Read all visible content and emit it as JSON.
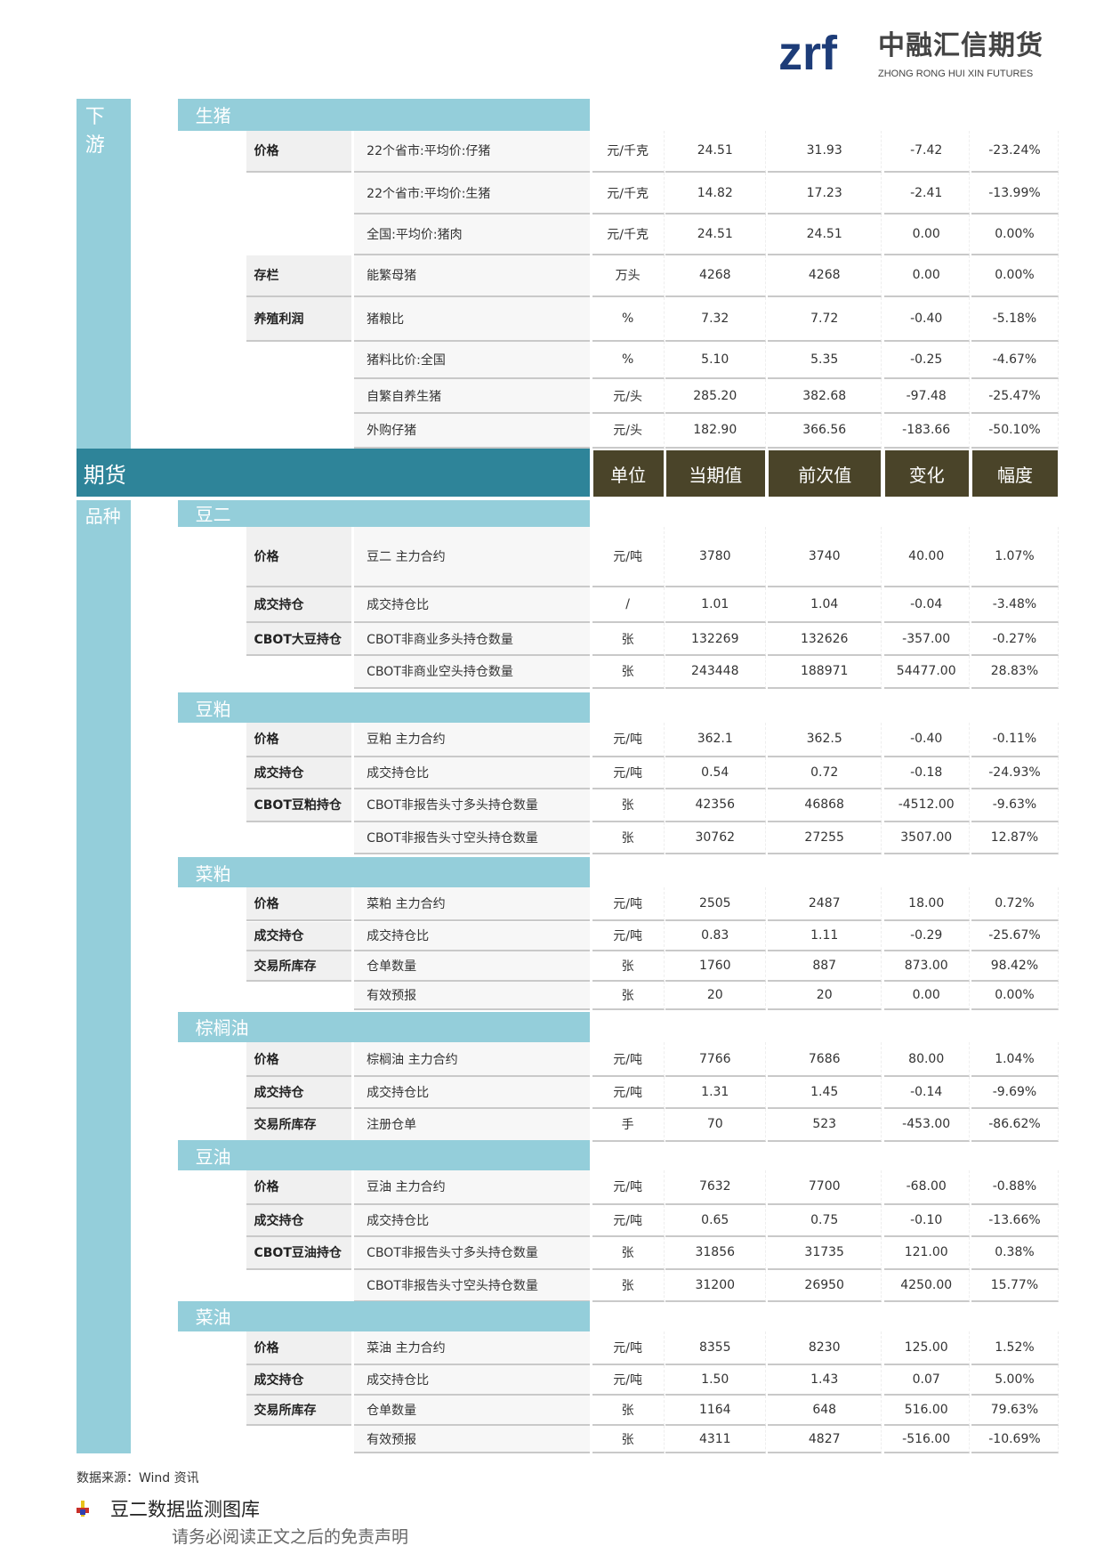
{
  "logo": {
    "cn": "中融汇信期货",
    "en": "ZHONG RONG HUI XIN FUTURES",
    "mark": "zrf"
  },
  "downstream": {
    "label": "下游",
    "section": "生猪",
    "rows": [
      [
        "价格",
        "22个省市:平均价:仔猪",
        "元/千克",
        "24.51",
        "31.93",
        "-7.42",
        "-23.24%"
      ],
      [
        "",
        "22个省市:平均价:生猪",
        "元/千克",
        "14.82",
        "17.23",
        "-2.41",
        "-13.99%"
      ],
      [
        "",
        "全国:平均价:猪肉",
        "元/千克",
        "24.51",
        "24.51",
        "0.00",
        "0.00%"
      ],
      [
        "存栏",
        "能繁母猪",
        "万头",
        "4268",
        "4268",
        "0.00",
        "0.00%"
      ],
      [
        "养殖利润",
        "猪粮比",
        "%",
        "7.32",
        "7.72",
        "-0.40",
        "-5.18%"
      ],
      [
        "",
        "猪料比价:全国",
        "%",
        "5.10",
        "5.35",
        "-0.25",
        "-4.67%"
      ],
      [
        "",
        "自繁自养生猪",
        "元/头",
        "285.20",
        "382.68",
        "-97.48",
        "-25.47%"
      ],
      [
        "",
        "外购仔猪",
        "元/头",
        "182.90",
        "366.56",
        "-183.66",
        "-50.10%"
      ]
    ]
  },
  "futures": {
    "label": "期货",
    "variety_label": "品种",
    "headers": [
      "单位",
      "当期值",
      "前次值",
      "变化",
      "幅度"
    ],
    "sections": [
      {
        "name": "豆二",
        "rows": [
          [
            "价格",
            "豆二 主力合约",
            "元/吨",
            "3780",
            "3740",
            "40.00",
            "1.07%"
          ],
          [
            "成交持仓",
            "成交持仓比",
            "/",
            "1.01",
            "1.04",
            "-0.04",
            "-3.48%"
          ],
          [
            "CBOT大豆持仓",
            "CBOT非商业多头持仓数量",
            "张",
            "132269",
            "132626",
            "-357.00",
            "-0.27%"
          ],
          [
            "",
            "CBOT非商业空头持仓数量",
            "张",
            "243448",
            "188971",
            "54477.00",
            "28.83%"
          ]
        ]
      },
      {
        "name": "豆粕",
        "rows": [
          [
            "价格",
            "豆粕 主力合约",
            "元/吨",
            "362.1",
            "362.5",
            "-0.40",
            "-0.11%"
          ],
          [
            "成交持仓",
            "成交持仓比",
            "元/吨",
            "0.54",
            "0.72",
            "-0.18",
            "-24.93%"
          ],
          [
            "CBOT豆粕持仓",
            "CBOT非报告头寸多头持仓数量",
            "张",
            "42356",
            "46868",
            "-4512.00",
            "-9.63%"
          ],
          [
            "",
            "CBOT非报告头寸空头持仓数量",
            "张",
            "30762",
            "27255",
            "3507.00",
            "12.87%"
          ]
        ]
      },
      {
        "name": "菜粕",
        "rows": [
          [
            "价格",
            "菜粕 主力合约",
            "元/吨",
            "2505",
            "2487",
            "18.00",
            "0.72%"
          ],
          [
            "成交持仓",
            "成交持仓比",
            "元/吨",
            "0.83",
            "1.11",
            "-0.29",
            "-25.67%"
          ],
          [
            "交易所库存",
            "仓单数量",
            "张",
            "1760",
            "887",
            "873.00",
            "98.42%"
          ],
          [
            "",
            "有效预报",
            "张",
            "20",
            "20",
            "0.00",
            "0.00%"
          ]
        ]
      },
      {
        "name": "棕榈油",
        "rows": [
          [
            "价格",
            "棕榈油 主力合约",
            "元/吨",
            "7766",
            "7686",
            "80.00",
            "1.04%"
          ],
          [
            "成交持仓",
            "成交持仓比",
            "元/吨",
            "1.31",
            "1.45",
            "-0.14",
            "-9.69%"
          ],
          [
            "交易所库存",
            "注册仓单",
            "手",
            "70",
            "523",
            "-453.00",
            "-86.62%"
          ]
        ]
      },
      {
        "name": "豆油",
        "rows": [
          [
            "价格",
            "豆油 主力合约",
            "元/吨",
            "7632",
            "7700",
            "-68.00",
            "-0.88%"
          ],
          [
            "成交持仓",
            "成交持仓比",
            "元/吨",
            "0.65",
            "0.75",
            "-0.10",
            "-13.66%"
          ],
          [
            "CBOT豆油持仓",
            "CBOT非报告头寸多头持仓数量",
            "张",
            "31856",
            "31735",
            "121.00",
            "0.38%"
          ],
          [
            "",
            "CBOT非报告头寸空头持仓数量",
            "张",
            "31200",
            "26950",
            "4250.00",
            "15.77%"
          ]
        ]
      },
      {
        "name": "菜油",
        "rows": [
          [
            "价格",
            "菜油 主力合约",
            "元/吨",
            "8355",
            "8230",
            "125.00",
            "1.52%"
          ],
          [
            "成交持仓",
            "成交持仓比",
            "元/吨",
            "1.50",
            "1.43",
            "0.07",
            "5.00%"
          ],
          [
            "交易所库存",
            "仓单数量",
            "张",
            "1164",
            "648",
            "516.00",
            "79.63%"
          ],
          [
            "",
            "有效预报",
            "张",
            "4311",
            "4827",
            "-516.00",
            "-10.69%"
          ]
        ]
      }
    ]
  },
  "footer": {
    "source": "数据来源：Wind 资讯",
    "library_title": "豆二数据监测图库",
    "disclaimer": "请务必阅读正文之后的免责声明",
    "library_icon": "pin-icon"
  }
}
